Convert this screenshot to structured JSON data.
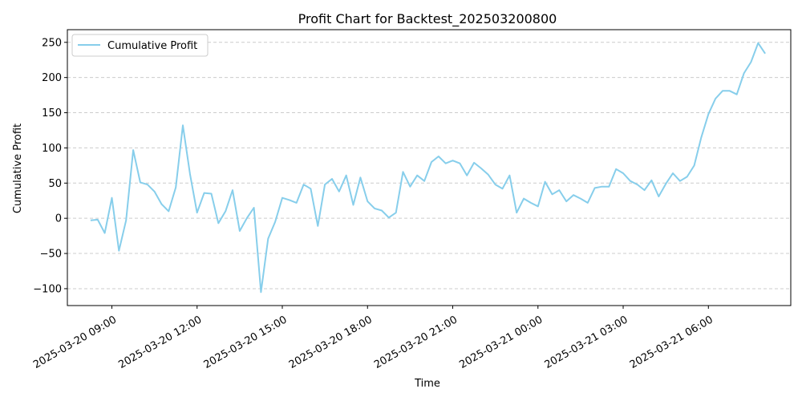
{
  "chart_data": {
    "type": "line",
    "title": "Profit Chart for Backtest_202503200800",
    "xlabel": "Time",
    "ylabel": "Cumulative Profit",
    "legend_position": "top-left",
    "grid": {
      "x": false,
      "y": true,
      "style": "dashed"
    },
    "x_range": [
      "2025-03-20 07:26",
      "2025-03-21 08:54"
    ],
    "ylim": [
      -124,
      268
    ],
    "x_ticks": [
      "2025-03-20 09:00",
      "2025-03-20 12:00",
      "2025-03-20 15:00",
      "2025-03-20 18:00",
      "2025-03-20 21:00",
      "2025-03-21 00:00",
      "2025-03-21 03:00",
      "2025-03-21 06:00"
    ],
    "y_ticks": [
      -100,
      -50,
      0,
      50,
      100,
      150,
      200,
      250
    ],
    "series": [
      {
        "name": "Cumulative Profit",
        "color": "#87ceeb",
        "x": [
          "2025-03-20 08:15",
          "2025-03-20 08:30",
          "2025-03-20 08:45",
          "2025-03-20 09:00",
          "2025-03-20 09:15",
          "2025-03-20 09:30",
          "2025-03-20 09:45",
          "2025-03-20 10:00",
          "2025-03-20 10:15",
          "2025-03-20 10:30",
          "2025-03-20 10:45",
          "2025-03-20 11:00",
          "2025-03-20 11:15",
          "2025-03-20 11:30",
          "2025-03-20 11:45",
          "2025-03-20 12:00",
          "2025-03-20 12:15",
          "2025-03-20 12:30",
          "2025-03-20 12:45",
          "2025-03-20 13:00",
          "2025-03-20 13:15",
          "2025-03-20 13:30",
          "2025-03-20 13:45",
          "2025-03-20 14:00",
          "2025-03-20 14:15",
          "2025-03-20 14:30",
          "2025-03-20 14:45",
          "2025-03-20 15:00",
          "2025-03-20 15:15",
          "2025-03-20 15:30",
          "2025-03-20 15:45",
          "2025-03-20 16:00",
          "2025-03-20 16:15",
          "2025-03-20 16:30",
          "2025-03-20 16:45",
          "2025-03-20 17:00",
          "2025-03-20 17:15",
          "2025-03-20 17:30",
          "2025-03-20 17:45",
          "2025-03-20 18:00",
          "2025-03-20 18:15",
          "2025-03-20 18:30",
          "2025-03-20 18:45",
          "2025-03-20 19:00",
          "2025-03-20 19:15",
          "2025-03-20 19:30",
          "2025-03-20 19:45",
          "2025-03-20 20:00",
          "2025-03-20 20:15",
          "2025-03-20 20:30",
          "2025-03-20 20:45",
          "2025-03-20 21:00",
          "2025-03-20 21:15",
          "2025-03-20 21:30",
          "2025-03-20 21:45",
          "2025-03-20 22:00",
          "2025-03-20 22:15",
          "2025-03-20 22:30",
          "2025-03-20 22:45",
          "2025-03-20 23:00",
          "2025-03-20 23:15",
          "2025-03-20 23:30",
          "2025-03-20 23:45",
          "2025-03-21 00:00",
          "2025-03-21 00:15",
          "2025-03-21 00:30",
          "2025-03-21 00:45",
          "2025-03-21 01:00",
          "2025-03-21 01:15",
          "2025-03-21 01:30",
          "2025-03-21 01:45",
          "2025-03-21 02:00",
          "2025-03-21 02:15",
          "2025-03-21 02:30",
          "2025-03-21 02:45",
          "2025-03-21 03:00",
          "2025-03-21 03:15",
          "2025-03-21 03:30",
          "2025-03-21 03:45",
          "2025-03-21 04:00",
          "2025-03-21 04:15",
          "2025-03-21 04:30",
          "2025-03-21 04:45",
          "2025-03-21 05:00",
          "2025-03-21 05:15",
          "2025-03-21 05:30",
          "2025-03-21 05:45",
          "2025-03-21 06:00",
          "2025-03-21 06:15",
          "2025-03-21 06:30",
          "2025-03-21 06:45",
          "2025-03-21 07:00",
          "2025-03-21 07:15",
          "2025-03-21 07:30",
          "2025-03-21 07:45",
          "2025-03-21 08:00"
        ],
        "y": [
          -3,
          -2,
          -21,
          29,
          -46,
          -3,
          97,
          51,
          48,
          38,
          20,
          10,
          44,
          132,
          63,
          8,
          36,
          35,
          -7,
          10,
          40,
          -18,
          0,
          15,
          -105,
          -29,
          -5,
          29,
          26,
          22,
          48,
          42,
          -11,
          48,
          56,
          38,
          61,
          19,
          58,
          24,
          14,
          11,
          1,
          8,
          66,
          45,
          61,
          53,
          80,
          88,
          78,
          82,
          78,
          61,
          79,
          71,
          62,
          48,
          42,
          61,
          8,
          28,
          22,
          17,
          52,
          34,
          40,
          24,
          33,
          28,
          22,
          43,
          45,
          45,
          70,
          64,
          53,
          48,
          40,
          54,
          31,
          49,
          64,
          53,
          59,
          75,
          115,
          148,
          170,
          181,
          181,
          176,
          206,
          222,
          249,
          234
        ]
      }
    ]
  }
}
